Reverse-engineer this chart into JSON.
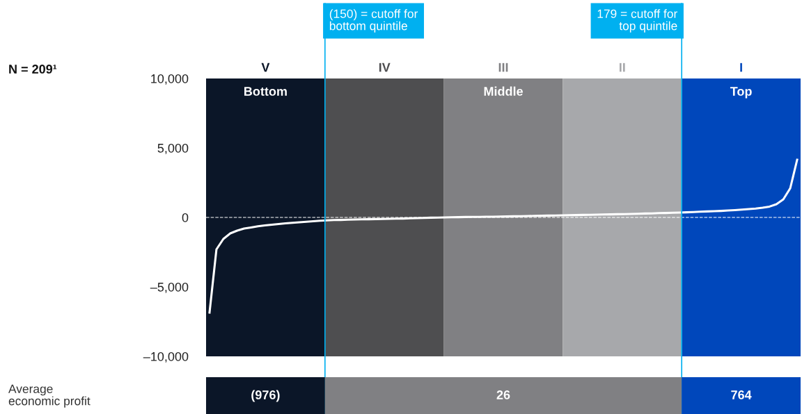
{
  "chart_data": {
    "type": "line",
    "categories": [
      null,
      null,
      null,
      null,
      null,
      null,
      null,
      null,
      null,
      null,
      null,
      null,
      null,
      null,
      null,
      null,
      null,
      null,
      null,
      null,
      null,
      null,
      null,
      null,
      null,
      null,
      null,
      null,
      null,
      null,
      null,
      null,
      null,
      null,
      null,
      null,
      null,
      null,
      null,
      null,
      null,
      null,
      null,
      null,
      null,
      null,
      null,
      null,
      null,
      null,
      null,
      null,
      null,
      null,
      null,
      null,
      null,
      null,
      null,
      null,
      null,
      null,
      null,
      null,
      null,
      null,
      null,
      null,
      null,
      null,
      null,
      null,
      null,
      null,
      null,
      null,
      null,
      null,
      null,
      null,
      null,
      null,
      null,
      null,
      null,
      null
    ],
    "series": [
      {
        "color": "#ffffff",
        "values": [
          -6850,
          -2300,
          -1550,
          -1150,
          -950,
          -800,
          -720,
          -640,
          -580,
          -520,
          -470,
          -430,
          -390,
          -350,
          -310,
          -270,
          -240,
          -210,
          -190,
          -180,
          -160,
          -150,
          -140,
          -130,
          -120,
          -110,
          -100,
          -90,
          -80,
          -60,
          -50,
          -40,
          -20,
          -10,
          0,
          10,
          20,
          30,
          40,
          40,
          50,
          50,
          60,
          70,
          80,
          90,
          100,
          110,
          120,
          130,
          140,
          150,
          160,
          170,
          180,
          190,
          200,
          210,
          220,
          230,
          240,
          250,
          260,
          280,
          290,
          310,
          320,
          340,
          350,
          370,
          390,
          410,
          430,
          450,
          470,
          500,
          530,
          560,
          600,
          640,
          700,
          780,
          950,
          1300,
          2100,
          4150
        ]
      }
    ],
    "ylim": [
      -10000,
      10000
    ],
    "yticks": [
      {
        "value": -10000,
        "label": "–10,000"
      },
      {
        "value": -5000,
        "label": "–5,000"
      },
      0,
      {
        "value": 5000,
        "label": "5,000"
      },
      {
        "value": 10000,
        "label": "10,000"
      }
    ],
    "tick_labels": "y",
    "grid": false,
    "marker": "none",
    "line_style": "solid",
    "ref_lines": [
      {
        "axis": "y",
        "value": 0,
        "color": "#ffffff",
        "line_style": "dashed"
      }
    ],
    "annotations": [
      "N = 209¹",
      "(150) = cutoff for\nbottom quintile",
      "179 = cutoff for\ntop quintile",
      "V",
      "IV",
      "III",
      "II",
      "I",
      "Bottom",
      "Middle",
      "Top",
      "Average\neconomic profit",
      "(976)",
      "26",
      "764"
    ]
  }
}
